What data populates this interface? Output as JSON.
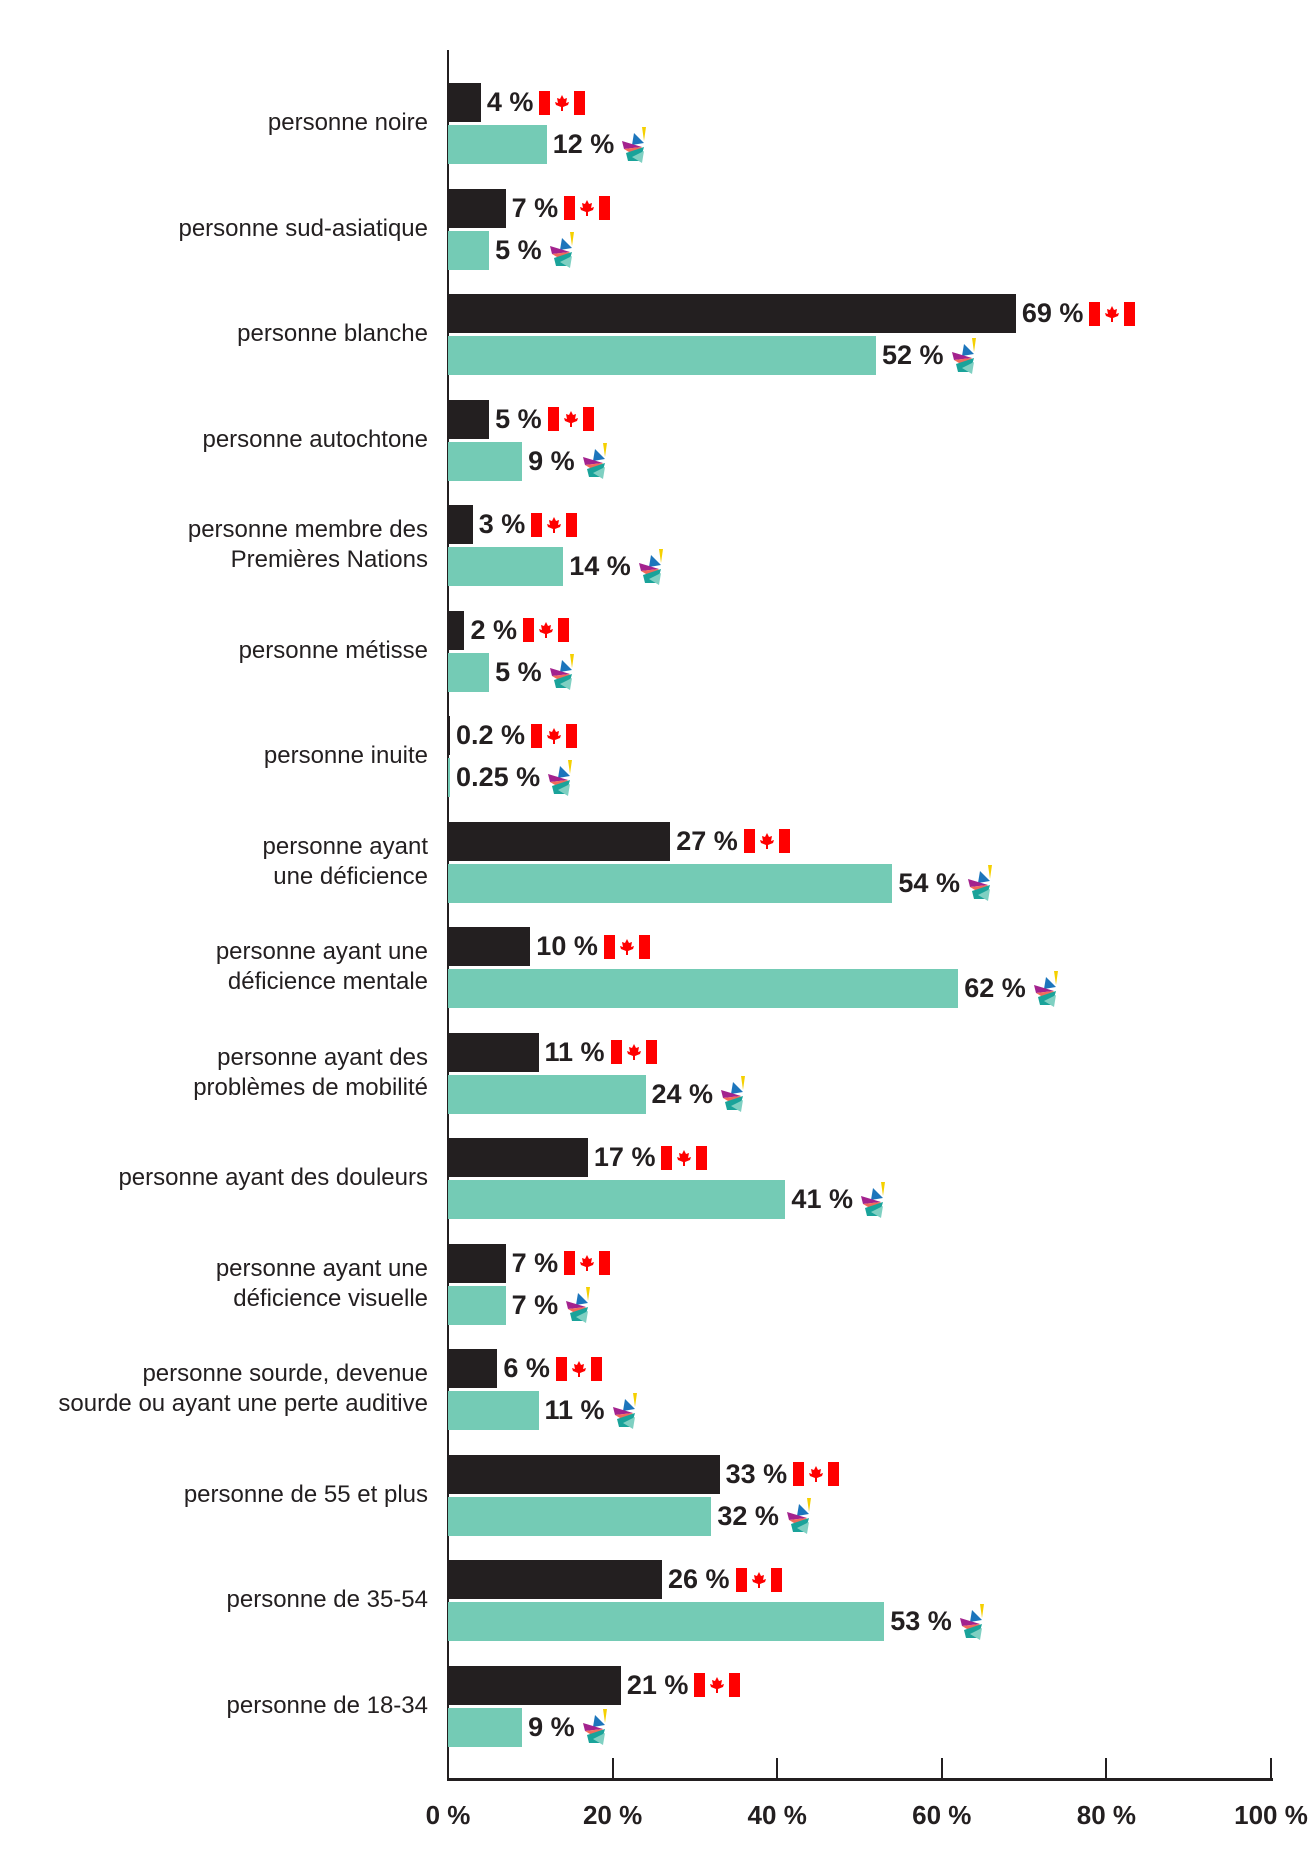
{
  "chart_data": {
    "type": "bar",
    "orientation": "horizontal",
    "xlim": [
      0,
      100
    ],
    "x_ticks": [
      "0 %",
      "20 %",
      "40 %",
      "60 %",
      "80 %",
      "100 %"
    ],
    "grid": false,
    "categories": [
      "personne noire",
      "personne sud-asiatique",
      "personne blanche",
      "personne autochtone",
      "personne membre des\nPremières Nations",
      "personne métisse",
      "personne inuite",
      "personne ayant\nune déficience",
      "personne ayant une\ndéficience mentale",
      "personne ayant des\nproblèmes de mobilité",
      "personne ayant des douleurs",
      "personne ayant une\ndéficience visuelle",
      "personne sourde, devenue\nsourde ou ayant une perte auditive",
      "personne de 55 et plus",
      "personne de 35-54",
      "personne de 18-34"
    ],
    "series": [
      {
        "color": "#231f20",
        "icon": "canada-flag-icon",
        "values": [
          4,
          7,
          69,
          5,
          3,
          2,
          0.2,
          27,
          10,
          11,
          17,
          7,
          6,
          33,
          26,
          21
        ],
        "labels": [
          "4 %",
          "7 %",
          "69 %",
          "5 %",
          "3 %",
          "2 %",
          "0.2 %",
          "27 %",
          "10 %",
          "11 %",
          "17 %",
          "7 %",
          "6 %",
          "33 %",
          "26 %",
          "21 %"
        ]
      },
      {
        "color": "#74cbb5",
        "icon": "organization-logo-icon",
        "values": [
          12,
          5,
          52,
          9,
          14,
          5,
          0.25,
          54,
          62,
          24,
          41,
          7,
          11,
          32,
          53,
          9
        ],
        "labels": [
          "12 %",
          "5 %",
          "52 %",
          "9 %",
          "14 %",
          "5 %",
          "0.25 %",
          "54 %",
          "62 %",
          "24 %",
          "41 %",
          "7 %",
          "11 %",
          "32 %",
          "53 %",
          "9 %"
        ]
      }
    ]
  }
}
